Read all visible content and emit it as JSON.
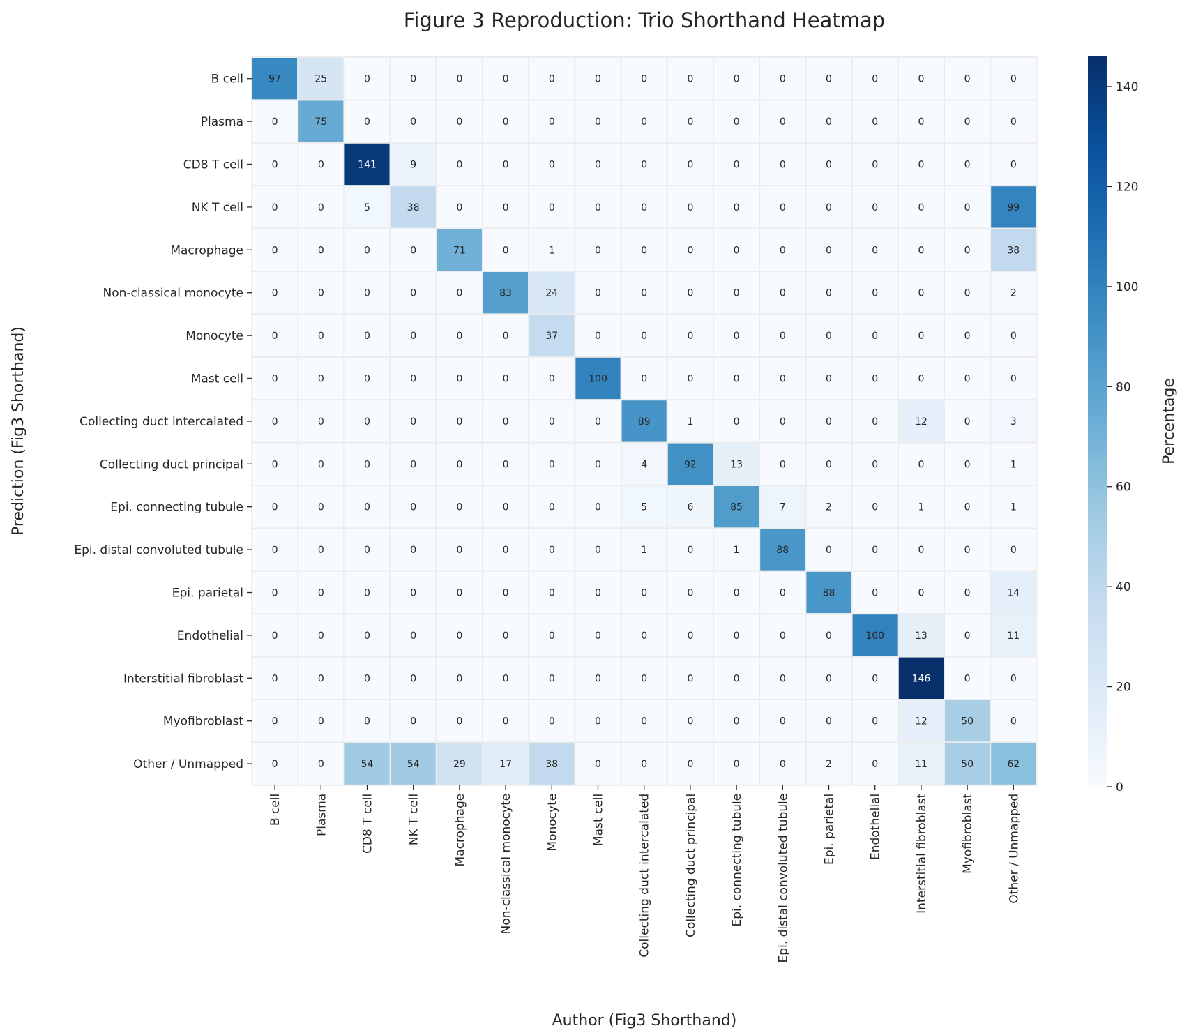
{
  "chart_data": {
    "type": "heatmap",
    "title": "Figure 3 Reproduction: Trio Shorthand Heatmap",
    "xlabel": "Author (Fig3 Shorthand)",
    "ylabel": "Prediction (Fig3 Shorthand)",
    "colorbar_label": "Percentage",
    "colormap": "Blues",
    "vmin": 0,
    "vmax": 146,
    "colorbar_ticks": [
      "0",
      "20",
      "40",
      "60",
      "80",
      "100",
      "120",
      "140"
    ],
    "x_categories": [
      "B cell",
      "Plasma",
      "CD8 T cell",
      "NK T cell",
      "Macrophage",
      "Non-classical monocyte",
      "Monocyte",
      "Mast cell",
      "Collecting duct intercalated",
      "Collecting duct principal",
      "Epi. connecting tubule",
      "Epi. distal convoluted tubule",
      "Epi. parietal",
      "Endothelial",
      "Interstitial fibroblast",
      "Myofibroblast",
      "Other / Unmapped"
    ],
    "y_categories": [
      "B cell",
      "Plasma",
      "CD8 T cell",
      "NK T cell",
      "Macrophage",
      "Non-classical monocyte",
      "Monocyte",
      "Mast cell",
      "Collecting duct intercalated",
      "Collecting duct principal",
      "Epi. connecting tubule",
      "Epi. distal convoluted tubule",
      "Epi. parietal",
      "Endothelial",
      "Interstitial fibroblast",
      "Myofibroblast",
      "Other / Unmapped"
    ],
    "values": [
      [
        97,
        25,
        0,
        0,
        0,
        0,
        0,
        0,
        0,
        0,
        0,
        0,
        0,
        0,
        0,
        0,
        0
      ],
      [
        0,
        75,
        0,
        0,
        0,
        0,
        0,
        0,
        0,
        0,
        0,
        0,
        0,
        0,
        0,
        0,
        0
      ],
      [
        0,
        0,
        141,
        9,
        0,
        0,
        0,
        0,
        0,
        0,
        0,
        0,
        0,
        0,
        0,
        0,
        0
      ],
      [
        0,
        0,
        5,
        38,
        0,
        0,
        0,
        0,
        0,
        0,
        0,
        0,
        0,
        0,
        0,
        0,
        99
      ],
      [
        0,
        0,
        0,
        0,
        71,
        0,
        1,
        0,
        0,
        0,
        0,
        0,
        0,
        0,
        0,
        0,
        38
      ],
      [
        0,
        0,
        0,
        0,
        0,
        83,
        24,
        0,
        0,
        0,
        0,
        0,
        0,
        0,
        0,
        0,
        2
      ],
      [
        0,
        0,
        0,
        0,
        0,
        0,
        37,
        0,
        0,
        0,
        0,
        0,
        0,
        0,
        0,
        0,
        0
      ],
      [
        0,
        0,
        0,
        0,
        0,
        0,
        0,
        100,
        0,
        0,
        0,
        0,
        0,
        0,
        0,
        0,
        0
      ],
      [
        0,
        0,
        0,
        0,
        0,
        0,
        0,
        0,
        89,
        1,
        0,
        0,
        0,
        0,
        12,
        0,
        3
      ],
      [
        0,
        0,
        0,
        0,
        0,
        0,
        0,
        0,
        4,
        92,
        13,
        0,
        0,
        0,
        0,
        0,
        1
      ],
      [
        0,
        0,
        0,
        0,
        0,
        0,
        0,
        0,
        5,
        6,
        85,
        7,
        2,
        0,
        1,
        0,
        1
      ],
      [
        0,
        0,
        0,
        0,
        0,
        0,
        0,
        0,
        1,
        0,
        1,
        88,
        0,
        0,
        0,
        0,
        0
      ],
      [
        0,
        0,
        0,
        0,
        0,
        0,
        0,
        0,
        0,
        0,
        0,
        0,
        88,
        0,
        0,
        0,
        14
      ],
      [
        0,
        0,
        0,
        0,
        0,
        0,
        0,
        0,
        0,
        0,
        0,
        0,
        0,
        100,
        13,
        0,
        11
      ],
      [
        0,
        0,
        0,
        0,
        0,
        0,
        0,
        0,
        0,
        0,
        0,
        0,
        0,
        0,
        146,
        0,
        0
      ],
      [
        0,
        0,
        0,
        0,
        0,
        0,
        0,
        0,
        0,
        0,
        0,
        0,
        0,
        0,
        12,
        50,
        0
      ],
      [
        0,
        0,
        54,
        54,
        29,
        17,
        38,
        0,
        0,
        0,
        0,
        0,
        2,
        0,
        11,
        50,
        62
      ]
    ]
  }
}
